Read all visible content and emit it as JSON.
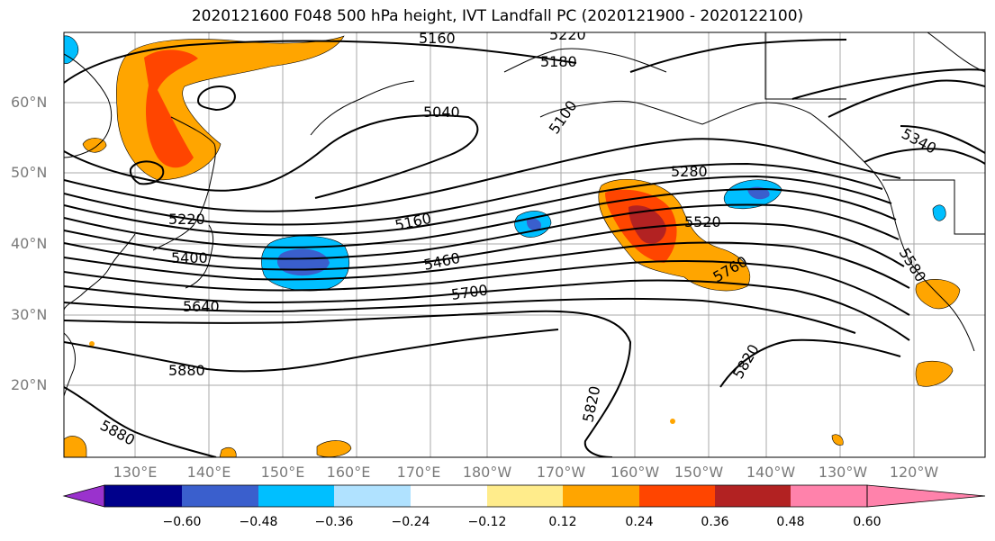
{
  "title": "2020121600 F048 500 hPa height, IVT Landfall PC (2020121900 - 2020122100)",
  "lat_labels": [
    "60°N",
    "50°N",
    "40°N",
    "30°N",
    "20°N"
  ],
  "lon_labels": [
    "130°E",
    "140°E",
    "150°E",
    "160°E",
    "170°E",
    "180°W",
    "170°W",
    "160°W",
    "150°W",
    "140°W",
    "130°W",
    "120°W"
  ],
  "contour_labels": [
    "5160",
    "5220",
    "5100",
    "5180",
    "5040",
    "5340",
    "5280",
    "5520",
    "5160",
    "5220",
    "5400",
    "5460",
    "5580",
    "5760",
    "5700",
    "5640",
    "5820",
    "5880",
    "5820",
    "5880"
  ],
  "colorbar": {
    "colors": [
      "#9a32cd",
      "#00008b",
      "#3a5fcd",
      "#00bfff",
      "#b0e2ff",
      "#ffffff",
      "#ffec8b",
      "#ffa500",
      "#ff4500",
      "#b22222",
      "#ff82ab"
    ],
    "tick_labels": [
      "−0.60",
      "−0.48",
      "−0.36",
      "−0.24",
      "−0.12",
      "0.12",
      "0.24",
      "0.36",
      "0.48",
      "0.60"
    ]
  }
}
